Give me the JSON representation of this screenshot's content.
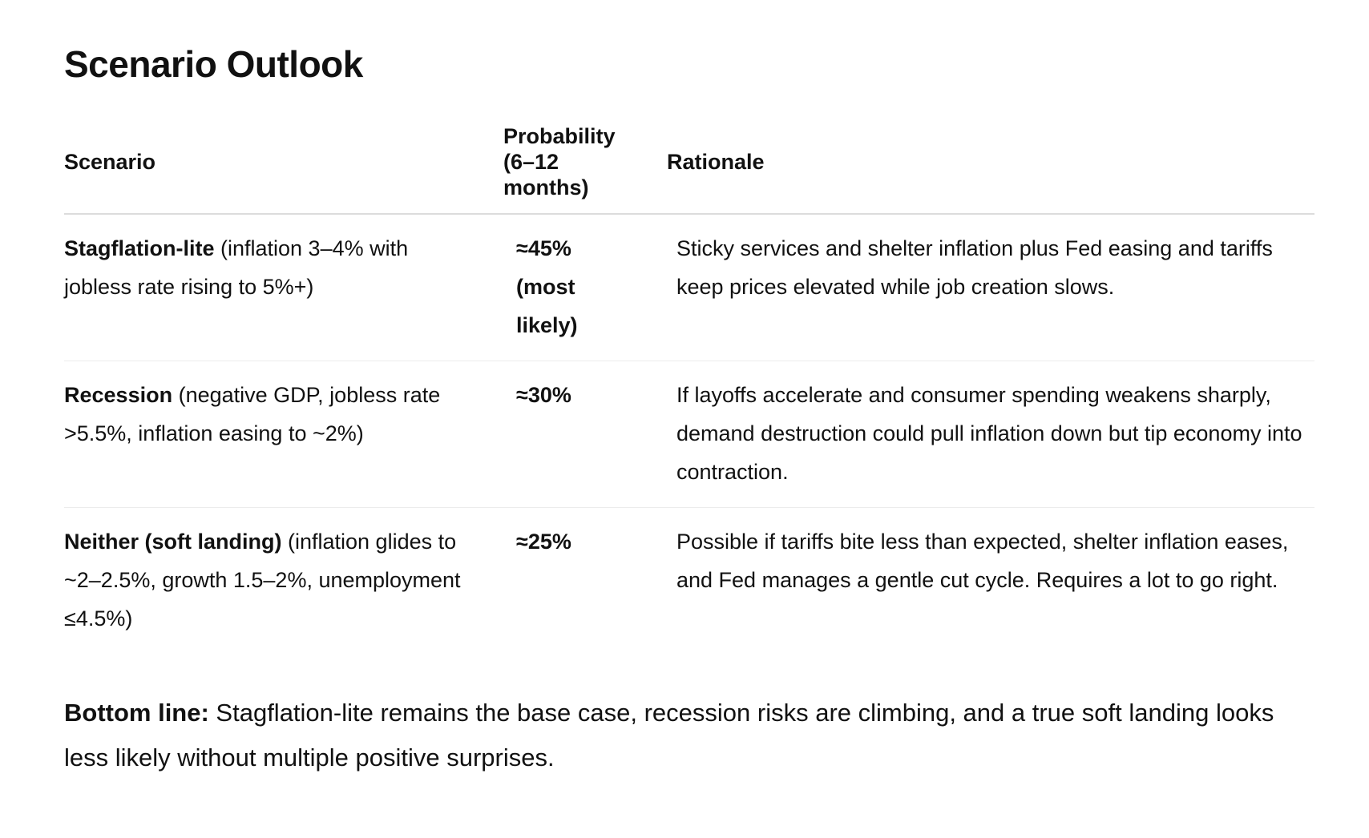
{
  "title": "Scenario Outlook",
  "table": {
    "headers": {
      "scenario": "Scenario",
      "probability": "Probability (6–12 months)",
      "rationale": "Rationale"
    },
    "rows": [
      {
        "name": "Stagflation-lite",
        "detail": " (inflation 3–4% with jobless rate rising to 5%+)",
        "probability": "≈45% (most likely)",
        "rationale": "Sticky services and shelter inflation plus Fed easing and tariffs keep prices elevated while job creation slows."
      },
      {
        "name": "Recession",
        "detail": " (negative GDP, jobless rate >5.5%, inflation easing to ~2%)",
        "probability": "≈30%",
        "rationale": "If layoffs accelerate and consumer spending weakens sharply, demand destruction could pull inflation down but tip economy into contraction."
      },
      {
        "name": "Neither (soft landing)",
        "detail": " (inflation glides to ~2–2.5%, growth 1.5–2%, unemployment ≤4.5%)",
        "probability": "≈25%",
        "rationale": "Possible if tariffs bite less than expected, shelter inflation eases, and Fed manages a gentle cut cycle. Requires a lot to go right."
      }
    ]
  },
  "bottom_line": {
    "label": "Bottom line:",
    "text": " Stagflation-lite remains the base case, recession risks are climbing, and a true soft landing looks less likely without multiple positive surprises."
  }
}
